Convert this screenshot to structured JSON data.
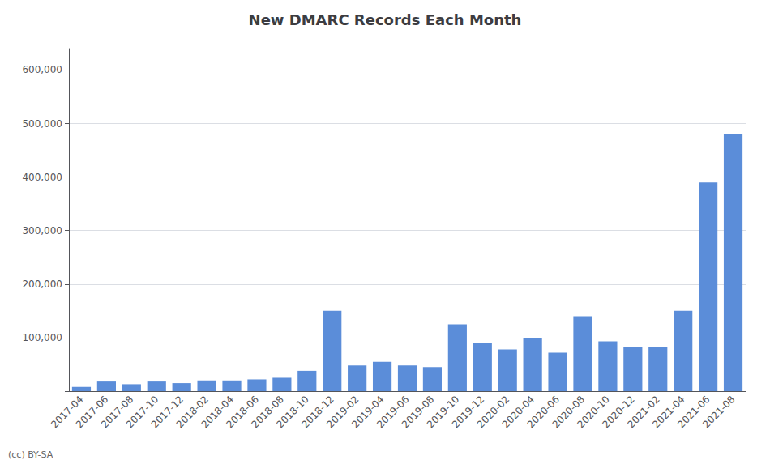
{
  "chart_data": {
    "type": "bar",
    "title": "New DMARC Records Each Month",
    "categories": [
      "2017-04",
      "2017-06",
      "2017-08",
      "2017-10",
      "2017-12",
      "2018-02",
      "2018-04",
      "2018-06",
      "2018-08",
      "2018-10",
      "2018-12",
      "2019-02",
      "2019-04",
      "2019-06",
      "2019-08",
      "2019-10",
      "2019-12",
      "2020-02",
      "2020-04",
      "2020-06",
      "2020-08",
      "2020-10",
      "2020-12",
      "2021-02",
      "2021-04",
      "2021-06",
      "2021-08"
    ],
    "values": [
      8000,
      18000,
      13000,
      18000,
      15000,
      20000,
      20000,
      22000,
      25000,
      38000,
      150000,
      48000,
      55000,
      48000,
      45000,
      125000,
      90000,
      78000,
      100000,
      72000,
      140000,
      93000,
      82000,
      82000,
      150000,
      390000,
      480000
    ],
    "color": "#5b8dd9",
    "ylim": [
      0,
      640000
    ],
    "yticks": [
      {
        "value": 0,
        "label": ""
      },
      {
        "value": 100000,
        "label": "100,000"
      },
      {
        "value": 200000,
        "label": "200,000"
      },
      {
        "value": 300000,
        "label": "300,000"
      },
      {
        "value": 400000,
        "label": "400,000"
      },
      {
        "value": 500000,
        "label": "500,000"
      },
      {
        "value": 600000,
        "label": "600,000"
      }
    ],
    "grid": true,
    "annotations": [
      "(cc) BY-SA"
    ]
  }
}
